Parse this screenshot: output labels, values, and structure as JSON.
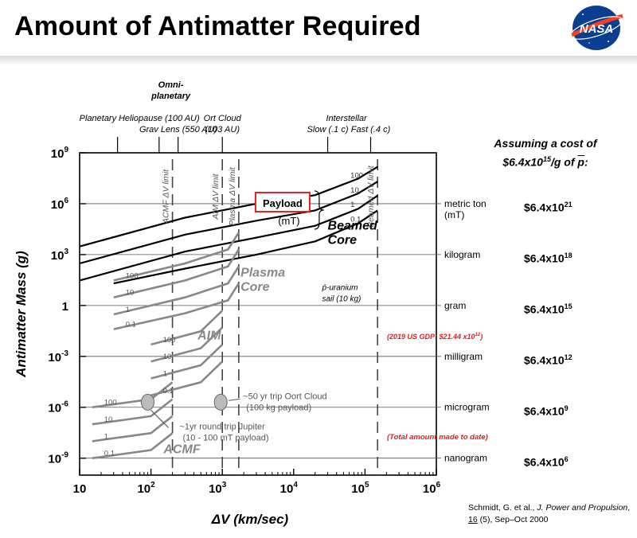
{
  "slide": {
    "title": "Amount of Antimatter Required",
    "logo_text": "NASA",
    "cost_heading_line1": "Assuming a cost of",
    "cost_heading_line2_pre": "$6.4x10",
    "cost_heading_line2_exp": "15",
    "cost_heading_line2_post": "/g of ",
    "cost_heading_pbar": "p",
    "citation_authors": "Schmidt, G. et al., ",
    "citation_journal": "J. Power and Propulsion",
    "citation_volume": "16",
    "citation_rest": " (5), Sep–Oct 2000"
  },
  "colors": {
    "nasa_blue": "#0b3d91",
    "nasa_red": "#fc3d21",
    "highlight_red": "#e02020",
    "curve_black": "#000000",
    "curve_gray": "#888888"
  },
  "chart_data": {
    "type": "line",
    "xscale": "log",
    "yscale": "log",
    "xlim": [
      10,
      1000000
    ],
    "ylim": [
      1e-10,
      1000000000.0
    ],
    "xlabel": "ΔV (km/sec)",
    "ylabel": "Antimatter Mass (g)",
    "x_ticks": [
      {
        "value": 10,
        "base": "10",
        "exp": ""
      },
      {
        "value": 100,
        "base": "10",
        "exp": "2"
      },
      {
        "value": 1000,
        "base": "10",
        "exp": "3"
      },
      {
        "value": 10000,
        "base": "10",
        "exp": "4"
      },
      {
        "value": 100000,
        "base": "10",
        "exp": "5"
      },
      {
        "value": 1000000,
        "base": "10",
        "exp": "6"
      }
    ],
    "y_ticks": [
      {
        "value": 1000000000.0,
        "base": "10",
        "exp": "9"
      },
      {
        "value": 1000000.0,
        "base": "10",
        "exp": "6"
      },
      {
        "value": 1000.0,
        "base": "10",
        "exp": "3"
      },
      {
        "value": 1,
        "base": "1",
        "exp": ""
      },
      {
        "value": 0.001,
        "base": "10",
        "exp": "-3"
      },
      {
        "value": 1e-06,
        "base": "10",
        "exp": "-6"
      },
      {
        "value": 1e-09,
        "base": "10",
        "exp": "-9"
      }
    ],
    "mass_levels": [
      {
        "label": "metric ton",
        "sublabel": "(mT)",
        "value": 1000000.0,
        "cost_base": "$6.4x10",
        "cost_exp": "21"
      },
      {
        "label": "kilogram",
        "sublabel": "",
        "value": 1000.0,
        "cost_base": "$6.4x10",
        "cost_exp": "18"
      },
      {
        "label": "gram",
        "sublabel": "",
        "value": 1,
        "cost_base": "$6.4x10",
        "cost_exp": "15"
      },
      {
        "label": "milligram",
        "sublabel": "",
        "value": 0.001,
        "cost_base": "$6.4x10",
        "cost_exp": "12"
      },
      {
        "label": "microgram",
        "sublabel": "",
        "value": 1e-06,
        "cost_base": "$6.4x10",
        "cost_exp": "9"
      },
      {
        "label": "nanogram",
        "sublabel": "",
        "value": 1e-09,
        "cost_base": "$6.4x10",
        "cost_exp": "6"
      }
    ],
    "mission_labels": [
      {
        "text": "Planetary",
        "x": 18,
        "row": 0
      },
      {
        "text": "Heliopause (100 AU)",
        "x": 130,
        "row": 0
      },
      {
        "text": "Grav Lens (550 AU)",
        "x": 240,
        "row": 1
      },
      {
        "text": "Ort Cloud",
        "x": 1000,
        "row": 0
      },
      {
        "text": "(103 AU)",
        "x": 1000,
        "row": 1
      },
      {
        "text": "Interstellar",
        "x": 55000,
        "row": 0
      },
      {
        "text": "Slow (.1 c)",
        "x": 30000,
        "row": 1
      },
      {
        "text": "Fast (.4 c)",
        "x": 120000,
        "row": 1
      }
    ],
    "omni_label_line1": "Omni-",
    "omni_label_line2": "planetary",
    "mission_ticks": [
      34,
      130,
      240,
      1000,
      30000,
      120000
    ],
    "limits": [
      {
        "label": "ACMF ΔV limit",
        "x": 200
      },
      {
        "label": "AIM ΔV limit",
        "x": 1000
      },
      {
        "label": "Plasma ΔV limit",
        "x": 1700
      },
      {
        "label": "Beamed ΔV limit",
        "x": 150000
      }
    ],
    "series": [
      {
        "name": "Beamed Core",
        "payload": "100",
        "color": "#000000",
        "points": [
          [
            10,
            3000.0
          ],
          [
            300,
            150000.0
          ],
          [
            3000,
            1000000.0
          ],
          [
            20000,
            3200000.0
          ],
          [
            80000,
            30000000.0
          ],
          [
            150000,
            150000000.0
          ]
        ]
      },
      {
        "name": "Beamed Core",
        "payload": "10",
        "color": "#000000",
        "points": [
          [
            10,
            300.0
          ],
          [
            300,
            15000.0
          ],
          [
            3000,
            100000.0
          ],
          [
            20000,
            400000.0
          ],
          [
            80000,
            4000000.0
          ],
          [
            150000,
            20000000.0
          ]
        ]
      },
      {
        "name": "Beamed Core",
        "payload": "1",
        "color": "#000000",
        "points": [
          [
            10,
            30
          ],
          [
            300,
            1500.0
          ],
          [
            3000,
            10000.0
          ],
          [
            20000,
            50000.0
          ],
          [
            80000,
            500000.0
          ],
          [
            150000,
            3000000.0
          ]
        ]
      },
      {
        "name": "Beamed Core",
        "payload": "0.1",
        "color": "#000000",
        "points": [
          [
            30,
            20
          ],
          [
            300,
            150
          ],
          [
            3000,
            1000.0
          ],
          [
            20000,
            6000.0
          ],
          [
            80000,
            70000.0
          ],
          [
            150000,
            400000.0
          ]
        ]
      },
      {
        "name": "Plasma Core",
        "payload": "100",
        "color": "#888888",
        "points": [
          [
            30,
            30
          ],
          [
            300,
            300
          ],
          [
            1200,
            2000.0
          ],
          [
            1700,
            20000.0
          ]
        ]
      },
      {
        "name": "Plasma Core",
        "payload": "10",
        "color": "#888888",
        "points": [
          [
            30,
            3
          ],
          [
            300,
            30
          ],
          [
            1200,
            200
          ],
          [
            1700,
            2000.0
          ]
        ]
      },
      {
        "name": "Plasma Core",
        "payload": "1",
        "color": "#888888",
        "points": [
          [
            30,
            0.3
          ],
          [
            300,
            3
          ],
          [
            1200,
            20
          ],
          [
            1700,
            200
          ]
        ]
      },
      {
        "name": "Plasma Core",
        "payload": "0.1",
        "color": "#888888",
        "points": [
          [
            30,
            0.04
          ],
          [
            300,
            0.35
          ],
          [
            1200,
            2
          ],
          [
            1700,
            20
          ]
        ]
      },
      {
        "name": "AIM",
        "payload": "100",
        "color": "#888888",
        "points": [
          [
            100,
            0.005
          ],
          [
            500,
            0.03
          ],
          [
            1000,
            0.5
          ]
        ]
      },
      {
        "name": "AIM",
        "payload": "10",
        "color": "#888888",
        "points": [
          [
            100,
            0.0005
          ],
          [
            500,
            0.003
          ],
          [
            1000,
            0.05
          ]
        ]
      },
      {
        "name": "AIM",
        "payload": "1",
        "color": "#888888",
        "points": [
          [
            100,
            5e-05
          ],
          [
            500,
            0.0003
          ],
          [
            1000,
            0.005
          ]
        ]
      },
      {
        "name": "AIM",
        "payload": "0.1",
        "color": "#888888",
        "points": [
          [
            100,
            5e-06
          ],
          [
            500,
            3e-05
          ],
          [
            1000,
            0.0005
          ]
        ]
      },
      {
        "name": "ACMF",
        "payload": "100",
        "color": "#888888",
        "points": [
          [
            15,
            1e-06
          ],
          [
            100,
            3e-06
          ],
          [
            200,
            3e-05
          ]
        ]
      },
      {
        "name": "ACMF",
        "payload": "10",
        "color": "#888888",
        "points": [
          [
            15,
            1e-07
          ],
          [
            100,
            3e-07
          ],
          [
            200,
            3e-06
          ]
        ]
      },
      {
        "name": "ACMF",
        "payload": "1",
        "color": "#888888",
        "points": [
          [
            15,
            1e-08
          ],
          [
            100,
            3e-08
          ],
          [
            200,
            3e-07
          ]
        ]
      },
      {
        "name": "ACMF",
        "payload": "0.1",
        "color": "#888888",
        "points": [
          [
            15,
            1e-09
          ],
          [
            100,
            3e-09
          ],
          [
            200,
            3e-08
          ]
        ]
      }
    ],
    "family_labels": [
      {
        "text_line1": "Beamed",
        "text_line2": "Core",
        "x": 30000,
        "y": 30000.0,
        "color": "#000000"
      },
      {
        "text_line1": "Plasma",
        "text_line2": "Core",
        "x": 1800,
        "y": 50,
        "color": "#888888"
      },
      {
        "text_line1": "AIM",
        "text_line2": "",
        "x": 450,
        "y": 0.01,
        "color": "#888888"
      },
      {
        "text_line1": "ACMF",
        "text_line2": "",
        "x": 150,
        "y": 2e-09,
        "color": "#888888"
      }
    ],
    "payload_callout": {
      "text": "Payload",
      "unit": "(mT)",
      "x": 7000,
      "y": 1000000.0
    },
    "pbar_sail_line1": "p̄-uranium",
    "pbar_sail_line2": "sail (10 kg)",
    "pbar_sail_x": 25000,
    "pbar_sail_y": 8,
    "annotations": [
      {
        "text": "~50 yr trip Oort Cloud",
        "line2": "(100 kg payload)",
        "x": 950,
        "y": 2e-06
      },
      {
        "text": "~1yr round trip Jupiter",
        "line2": "(10 - 100 mT payload)",
        "x": 90,
        "y": 2e-06
      }
    ],
    "gdp_note": "(2019 US GDP: $21.44 x10",
    "gdp_note_exp": "12",
    "gdp_note_close": ")",
    "total_made_note": "(Total amount made to date)"
  }
}
